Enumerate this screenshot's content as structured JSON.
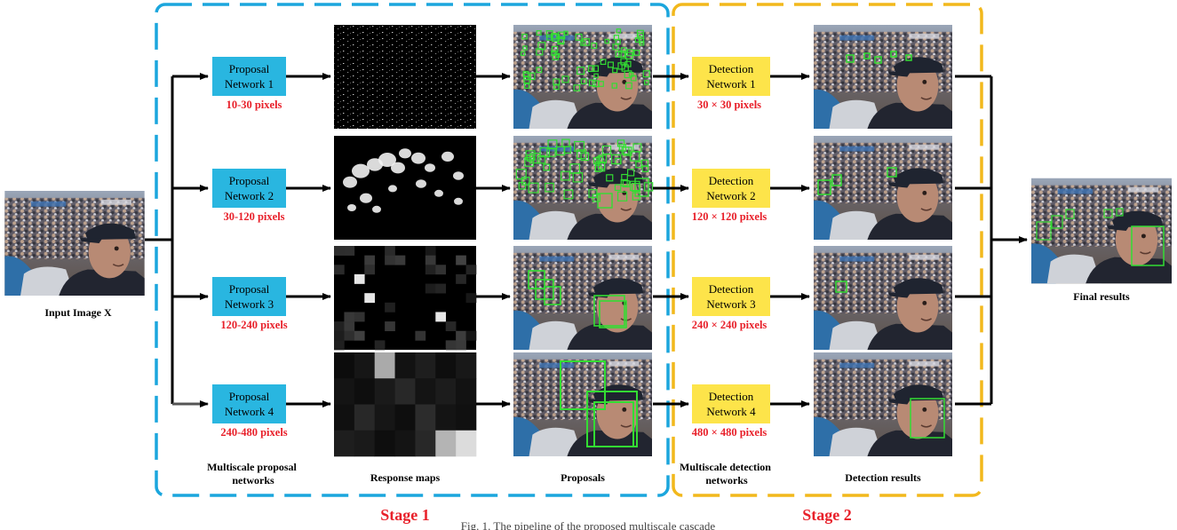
{
  "input_label": "Input Image X",
  "final_label": "Final results",
  "stage1_label": "Stage 1",
  "stage2_label": "Stage 2",
  "caption": "Fig. 1. The pipeline of the proposed multiscale cascade",
  "columns": {
    "proposal_networks": [
      "Multiscale proposal",
      "networks"
    ],
    "response_maps": "Response maps",
    "proposals": "Proposals",
    "detection_networks": [
      "Multiscale detection",
      "networks"
    ],
    "detection_results": "Detection results"
  },
  "proposal_networks": [
    {
      "line1": "Proposal",
      "line2": "Network 1",
      "range": "10-30 pixels"
    },
    {
      "line1": "Proposal",
      "line2": "Network 2",
      "range": "30-120 pixels"
    },
    {
      "line1": "Proposal",
      "line2": "Network 3",
      "range": "120-240 pixels"
    },
    {
      "line1": "Proposal",
      "line2": "Network 4",
      "range": "240-480 pixels"
    }
  ],
  "detection_networks": [
    {
      "line1": "Detection",
      "line2": "Network 1",
      "size": "30 × 30 pixels"
    },
    {
      "line1": "Detection",
      "line2": "Network 2",
      "size": "120 × 120 pixels"
    },
    {
      "line1": "Detection",
      "line2": "Network 3",
      "size": "240 × 240 pixels"
    },
    {
      "line1": "Detection",
      "line2": "Network 4",
      "size": "480 × 480 pixels"
    }
  ],
  "colors": {
    "proposal_box": "#29b6e0",
    "detection_box": "#fde44a",
    "stage1_border": "#1ba6dd",
    "stage2_border": "#f2b81c",
    "red_text": "#e8202a",
    "bbox_green": "#33dd33"
  }
}
